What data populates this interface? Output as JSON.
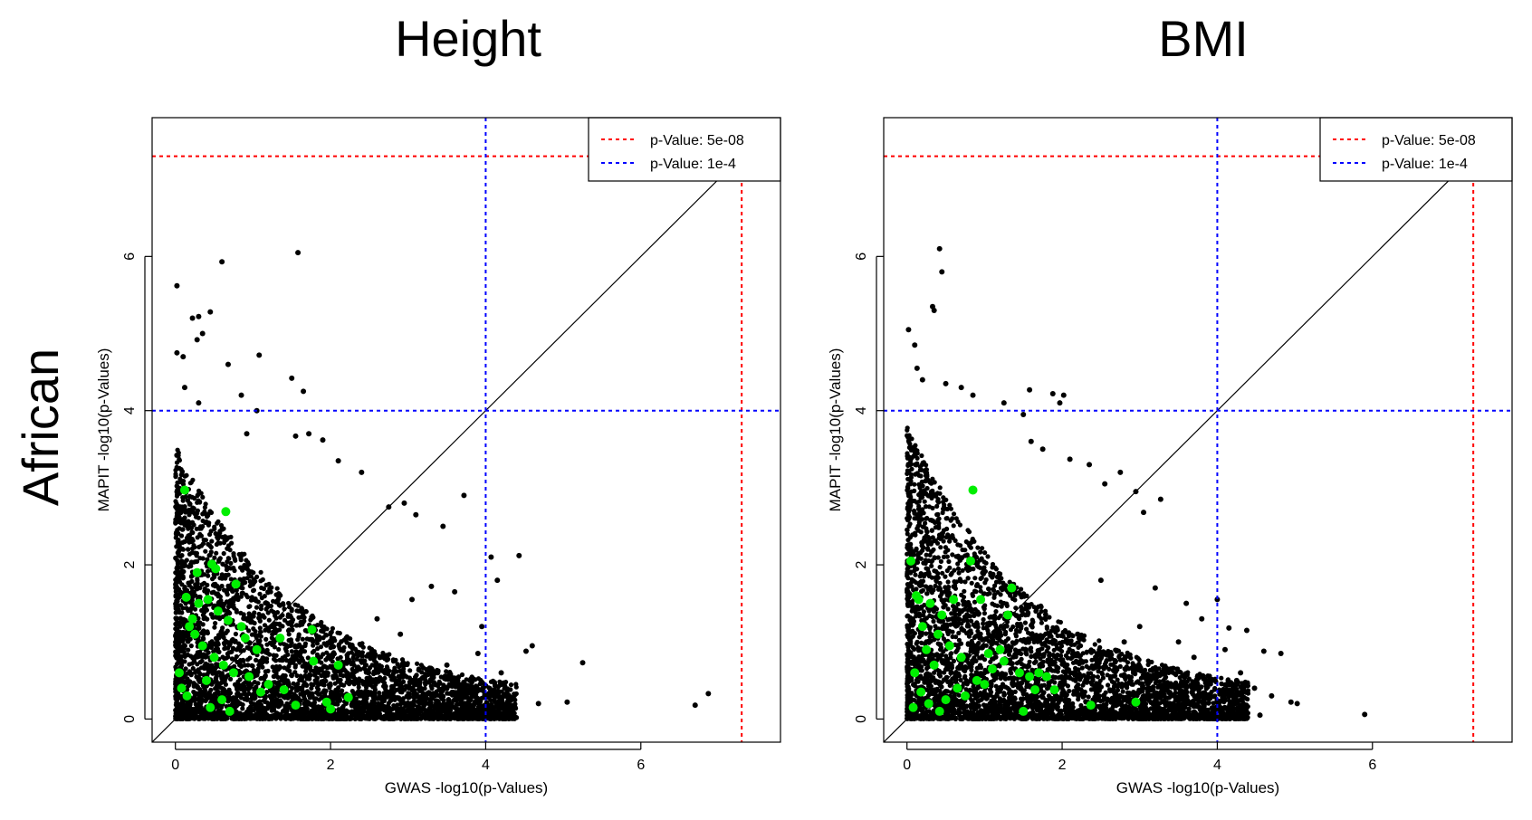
{
  "row_label": "African",
  "chart_data": [
    {
      "type": "scatter",
      "title": "Height",
      "xlabel": "GWAS -log10(p-Values)",
      "ylabel": "MAPIT -log10(p-Values)",
      "xlim": [
        -0.3,
        7.8
      ],
      "ylim": [
        -0.3,
        7.8
      ],
      "xticks": [
        0,
        2,
        4,
        6
      ],
      "yticks": [
        0,
        2,
        4,
        6
      ],
      "grid": false,
      "diagonal": true,
      "legend": {
        "placement": "top-right",
        "entries": [
          {
            "label": "p-Value: 5e-08",
            "color": "#ff0000",
            "style": "dashed"
          },
          {
            "label": "p-Value: 1e-4",
            "color": "#0000ff",
            "style": "dashed"
          }
        ]
      },
      "thresholds": [
        {
          "value": 7.3,
          "color": "#ff0000"
        },
        {
          "value": 4.0,
          "color": "#0000ff"
        }
      ],
      "series": [
        {
          "color": "#000000",
          "x": [
            1.58,
            0.6,
            0.02,
            0.45,
            0.3,
            0.22,
            0.35,
            0.02,
            0.1,
            0.28,
            1.08,
            1.5,
            1.65,
            0.68,
            0.85,
            0.12,
            0.3,
            1.05,
            0.92,
            1.55,
            1.72,
            1.9,
            2.1,
            2.4,
            2.75,
            2.95,
            3.1,
            3.45,
            3.72,
            4.07,
            4.15,
            4.43,
            4.6,
            3.05,
            3.3,
            3.6,
            4.52,
            5.05,
            5.25,
            4.68,
            6.7,
            6.87,
            3.9,
            3.95,
            4.2,
            4.3,
            3.8,
            3.5,
            2.9,
            2.6
          ],
          "y": [
            6.05,
            5.93,
            5.62,
            5.28,
            5.22,
            5.2,
            5.0,
            4.75,
            4.7,
            4.92,
            4.72,
            4.42,
            4.25,
            4.6,
            4.2,
            4.3,
            4.1,
            4.0,
            3.7,
            3.67,
            3.7,
            3.62,
            3.35,
            3.2,
            2.75,
            2.8,
            2.65,
            2.5,
            2.9,
            2.1,
            1.8,
            2.12,
            0.95,
            1.55,
            1.72,
            1.65,
            0.88,
            0.22,
            0.73,
            0.2,
            0.18,
            0.33,
            0.85,
            1.2,
            0.6,
            0.3,
            0.5,
            0.7,
            1.1,
            1.3
          ]
        },
        {
          "color": "#00ee00",
          "x": [
            0.12,
            0.65,
            0.47,
            0.52,
            0.28,
            0.78,
            0.14,
            0.3,
            0.42,
            0.85,
            1.35,
            1.76,
            1.78,
            2.1,
            2.23,
            0.55,
            0.68,
            0.9,
            1.05,
            1.4,
            1.55,
            1.95,
            2.0,
            0.25,
            0.35,
            0.5,
            0.62,
            0.75,
            0.95,
            0.18,
            0.22,
            0.4,
            0.05,
            0.08,
            0.15,
            0.6,
            1.1,
            1.2,
            0.45,
            0.7
          ],
          "y": [
            2.97,
            2.69,
            2.01,
            1.95,
            1.9,
            1.75,
            1.58,
            1.5,
            1.55,
            1.2,
            1.05,
            1.16,
            0.75,
            0.7,
            0.28,
            1.4,
            1.28,
            1.05,
            0.9,
            0.38,
            0.18,
            0.22,
            0.13,
            1.1,
            0.95,
            0.8,
            0.7,
            0.6,
            0.55,
            1.2,
            1.3,
            0.5,
            0.6,
            0.4,
            0.3,
            0.25,
            0.35,
            0.45,
            0.15,
            0.1
          ]
        }
      ]
    },
    {
      "type": "scatter",
      "title": "BMI",
      "xlabel": "GWAS -log10(p-Values)",
      "ylabel": "MAPIT -log10(p-Values)",
      "xlim": [
        -0.3,
        7.8
      ],
      "ylim": [
        -0.3,
        7.8
      ],
      "xticks": [
        0,
        2,
        4,
        6
      ],
      "yticks": [
        0,
        2,
        4,
        6
      ],
      "grid": false,
      "diagonal": true,
      "legend": {
        "placement": "top-right",
        "entries": [
          {
            "label": "p-Value: 5e-08",
            "color": "#ff0000",
            "style": "dashed"
          },
          {
            "label": "p-Value: 1e-4",
            "color": "#0000ff",
            "style": "dashed"
          }
        ]
      },
      "thresholds": [
        {
          "value": 7.3,
          "color": "#ff0000"
        },
        {
          "value": 4.0,
          "color": "#0000ff"
        }
      ],
      "series": [
        {
          "color": "#000000",
          "x": [
            0.42,
            0.45,
            0.33,
            0.35,
            0.02,
            0.1,
            0.13,
            0.2,
            0.5,
            0.7,
            0.85,
            1.25,
            1.5,
            1.58,
            1.88,
            1.97,
            2.02,
            1.6,
            1.75,
            2.1,
            2.35,
            2.55,
            2.75,
            2.95,
            3.27,
            3.05,
            3.6,
            4.0,
            4.15,
            4.38,
            4.6,
            4.82,
            4.95,
            5.03,
            4.3,
            4.48,
            4.7,
            5.9,
            4.55,
            3.8,
            3.5,
            3.2,
            3.0,
            2.8,
            2.5,
            4.1,
            4.25,
            3.7,
            3.4,
            2.2
          ],
          "y": [
            6.1,
            5.8,
            5.35,
            5.3,
            5.05,
            4.85,
            4.55,
            4.4,
            4.35,
            4.3,
            4.2,
            4.1,
            3.95,
            4.27,
            4.22,
            4.1,
            4.2,
            3.6,
            3.5,
            3.37,
            3.3,
            3.05,
            3.2,
            2.95,
            2.85,
            2.68,
            1.5,
            1.55,
            1.18,
            1.15,
            0.88,
            0.85,
            0.22,
            0.2,
            0.6,
            0.4,
            0.3,
            0.06,
            0.05,
            1.3,
            1.0,
            1.7,
            1.2,
            1.0,
            1.8,
            0.9,
            0.5,
            0.8,
            0.65,
            1.1
          ]
        },
        {
          "color": "#00ee00",
          "x": [
            0.85,
            0.05,
            0.82,
            0.12,
            0.15,
            0.3,
            0.45,
            0.2,
            0.6,
            0.95,
            1.35,
            1.3,
            1.2,
            1.05,
            1.45,
            1.58,
            1.7,
            1.8,
            1.9,
            2.37,
            2.95,
            1.65,
            1.5,
            0.4,
            0.55,
            0.7,
            0.25,
            0.35,
            0.1,
            0.9,
            1.0,
            0.65,
            0.75,
            0.5,
            0.18,
            0.28,
            1.1,
            1.25,
            0.08,
            0.42
          ],
          "y": [
            2.97,
            2.05,
            2.05,
            1.6,
            1.55,
            1.5,
            1.35,
            1.2,
            1.55,
            1.55,
            1.7,
            1.35,
            0.9,
            0.85,
            0.6,
            0.55,
            0.6,
            0.55,
            0.38,
            0.18,
            0.22,
            0.38,
            0.1,
            1.1,
            0.95,
            0.8,
            0.9,
            0.7,
            0.6,
            0.5,
            0.45,
            0.4,
            0.3,
            0.25,
            0.35,
            0.2,
            0.65,
            0.75,
            0.15,
            0.1
          ]
        }
      ]
    }
  ]
}
